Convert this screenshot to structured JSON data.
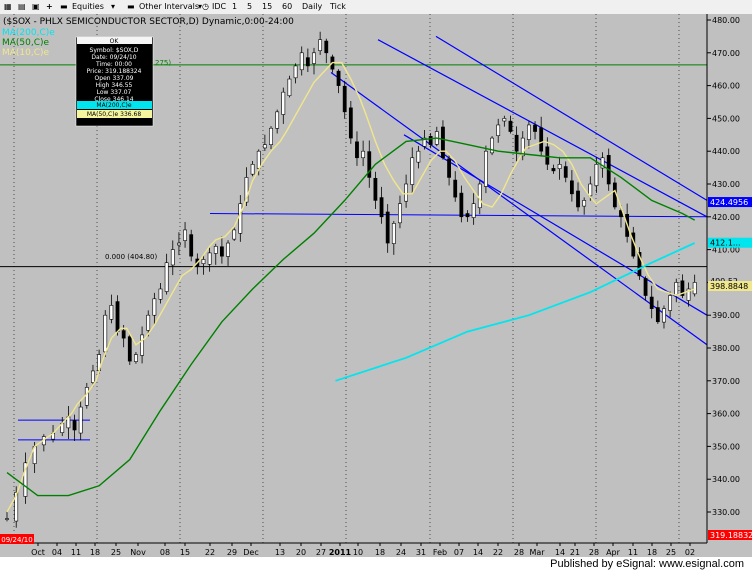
{
  "toolbar": {
    "equities_label": "Equities",
    "other_intervals_label": "Other Intervals",
    "idc_label": "IDC",
    "intervals": [
      "1",
      "5",
      "15",
      "60",
      "Daily",
      "Tick"
    ]
  },
  "chart_title": "($SOX - PHLX SEMICONDUCTOR SECTOR,D) Dynamic,0:00-24:00",
  "legend": {
    "ma200": "MA(200,C)e",
    "ma50": "MA(50,C)e",
    "ma10": "MA(10,C)e"
  },
  "info_box": {
    "header": "OK",
    "lines": [
      "Symbol: $SOX,D",
      "Date: 09/24/10",
      "Time: 00:00",
      "Price: 319.188324",
      "Open 337.09",
      "High 346.55",
      "Low 337.07",
      "Close 346.14"
    ],
    "ma200_row": "MA(200,C)e",
    "ma50_row": "MA(50,C)e 336.68"
  },
  "annotations": {
    "fib_label": "0.000 (404.80)",
    "fib_label_2": "275)"
  },
  "x_labels": {
    "day_ticks": [
      "Oct",
      "04",
      "11",
      "18",
      "25",
      "Nov",
      "08",
      "15",
      "22",
      "29",
      "Dec",
      "13",
      "20",
      "27",
      "2011",
      "10",
      "18",
      "24",
      "31",
      "Feb",
      "07",
      "14",
      "22",
      "28",
      "Mar",
      "14",
      "21",
      "28",
      "Apr",
      "11",
      "18",
      "25",
      "02",
      "May",
      "09",
      "16",
      "23",
      "31",
      "Jun",
      "13",
      "20",
      "27"
    ],
    "start_date": "09/24/10"
  },
  "footer": {
    "text": "Published by eSignal: www.esignal.com"
  },
  "colors": {
    "background": "#c0c0c0",
    "up_candle": "#ffffff",
    "down_candle": "#000000",
    "ma10": "#f0e68c",
    "ma50": "#008000",
    "ma200": "#00e5ee",
    "channel": "#0000ff",
    "price_tag": "#ff0000"
  },
  "chart_data": {
    "type": "line",
    "title": "($SOX - PHLX SEMICONDUCTOR SECTOR,D) Dynamic,0:00-24:00",
    "xlabel": "",
    "ylabel": "",
    "ylim": [
      320,
      480
    ],
    "yticks": [
      330,
      340,
      350,
      360,
      370,
      380,
      390,
      400,
      410,
      420,
      430,
      440,
      450,
      460,
      470,
      480
    ],
    "right_tags": [
      {
        "label": "424.4956",
        "value": 424.5,
        "color": "#0000ff"
      },
      {
        "label": "412.1...",
        "value": 412.1,
        "color": "#00e5ee"
      },
      {
        "label": "400.52",
        "value": 400.5,
        "color": "#c0c0c0"
      },
      {
        "label": "398.8848",
        "value": 398.9,
        "color": "#f0e68c"
      },
      {
        "label": "319.188324",
        "value": 319.19,
        "color": "#ff0000"
      }
    ],
    "horizontal_lines": [
      {
        "value": 404.8,
        "color": "#000000"
      },
      {
        "value": 466.3,
        "color": "#008000"
      }
    ],
    "series": [
      {
        "name": "MA(10,C)e",
        "color": "#f0e68c",
        "values": [
          [
            0,
            330
          ],
          [
            3,
            335
          ],
          [
            6,
            343
          ],
          [
            9,
            350
          ],
          [
            12,
            352
          ],
          [
            15,
            354
          ],
          [
            18,
            357
          ],
          [
            21,
            360
          ],
          [
            23,
            363
          ],
          [
            26,
            366
          ],
          [
            29,
            370
          ],
          [
            31,
            376
          ],
          [
            34,
            383
          ],
          [
            37,
            386
          ],
          [
            39,
            386
          ],
          [
            42,
            381
          ],
          [
            45,
            383
          ],
          [
            48,
            387
          ],
          [
            51,
            392
          ],
          [
            54,
            397
          ],
          [
            57,
            402
          ],
          [
            60,
            404
          ],
          [
            63,
            407
          ],
          [
            66,
            411
          ],
          [
            68,
            413
          ],
          [
            71,
            414
          ],
          [
            74,
            417
          ],
          [
            77,
            423
          ],
          [
            80,
            431
          ],
          [
            83,
            436
          ],
          [
            86,
            440
          ],
          [
            89,
            443
          ],
          [
            91,
            446
          ],
          [
            94,
            451
          ],
          [
            97,
            456
          ],
          [
            100,
            461
          ],
          [
            103,
            464
          ],
          [
            106,
            467
          ],
          [
            109,
            467
          ],
          [
            112,
            462
          ],
          [
            115,
            456
          ],
          [
            117,
            451
          ],
          [
            120,
            443
          ],
          [
            123,
            436
          ],
          [
            126,
            431
          ],
          [
            129,
            427
          ],
          [
            132,
            427
          ],
          [
            135,
            432
          ],
          [
            138,
            437
          ],
          [
            141,
            440
          ],
          [
            143,
            440
          ],
          [
            146,
            437
          ],
          [
            149,
            432
          ],
          [
            152,
            428
          ],
          [
            155,
            424
          ],
          [
            158,
            423
          ],
          [
            161,
            427
          ],
          [
            164,
            433
          ],
          [
            167,
            438
          ],
          [
            169,
            441
          ],
          [
            172,
            442
          ],
          [
            175,
            443
          ],
          [
            178,
            442
          ],
          [
            181,
            440
          ],
          [
            184,
            436
          ],
          [
            187,
            430
          ],
          [
            190,
            426
          ],
          [
            192,
            424
          ],
          [
            195,
            426
          ],
          [
            198,
            428
          ],
          [
            200,
            423
          ],
          [
            203,
            415
          ],
          [
            206,
            408
          ],
          [
            209,
            402
          ],
          [
            212,
            398
          ],
          [
            215,
            397
          ],
          [
            218,
            396
          ],
          [
            221,
            397
          ],
          [
            224,
            398
          ]
        ]
      },
      {
        "name": "MA(50,C)e",
        "color": "#008000",
        "values": [
          [
            0,
            342
          ],
          [
            10,
            335
          ],
          [
            20,
            335
          ],
          [
            30,
            338
          ],
          [
            40,
            346
          ],
          [
            50,
            361
          ],
          [
            60,
            375
          ],
          [
            70,
            388
          ],
          [
            80,
            398
          ],
          [
            90,
            407
          ],
          [
            100,
            415
          ],
          [
            110,
            425
          ],
          [
            120,
            436
          ],
          [
            130,
            443
          ],
          [
            140,
            444
          ],
          [
            150,
            442
          ],
          [
            160,
            440
          ],
          [
            170,
            439
          ],
          [
            180,
            438
          ],
          [
            190,
            438
          ],
          [
            200,
            432
          ],
          [
            210,
            425
          ],
          [
            220,
            421
          ],
          [
            224,
            419
          ]
        ]
      },
      {
        "name": "MA(200,C)e",
        "color": "#00e5ee",
        "values": [
          [
            107,
            370
          ],
          [
            130,
            377
          ],
          [
            150,
            385
          ],
          [
            170,
            390
          ],
          [
            190,
            397
          ],
          [
            210,
            406
          ],
          [
            224,
            412
          ]
        ]
      },
      {
        "name": "Channel lines",
        "color": "#0000ff",
        "values": [
          [
            105,
            474
          ],
          [
            224,
            423
          ],
          [
            105,
            464
          ],
          [
            224,
            381
          ],
          [
            135,
            475
          ],
          [
            224,
            424
          ],
          [
            120,
            454
          ],
          [
            224,
            403
          ],
          [
            5,
            358
          ],
          [
            31,
            358
          ],
          [
            5,
            352
          ],
          [
            31,
            352
          ],
          [
            65,
            420
          ],
          [
            224,
            420
          ]
        ]
      }
    ],
    "candles_summary": {
      "start": "09/24/10",
      "end": "06/27/11",
      "low": 326,
      "high": 476,
      "note": "Daily OHLC candles"
    }
  }
}
